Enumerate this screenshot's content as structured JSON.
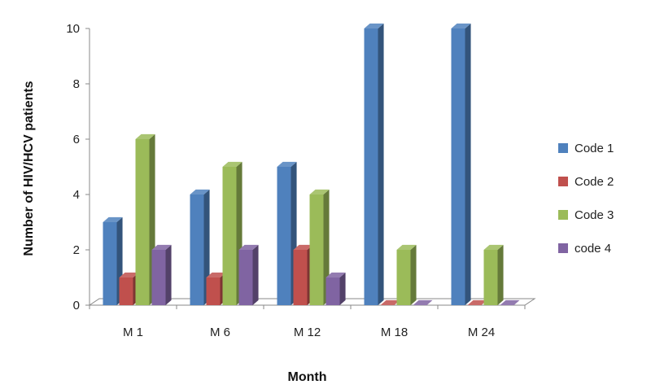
{
  "chart_data": {
    "type": "bar",
    "title": "",
    "xlabel": "Month",
    "ylabel": "Number of HIV/HCV patients",
    "categories": [
      "M 1",
      "M 6",
      "M 12",
      "M 18",
      "M 24"
    ],
    "ylim": [
      0,
      10
    ],
    "yticks": [
      "0",
      "2",
      "4",
      "6",
      "8",
      "10"
    ],
    "grid": false,
    "legend_position": "right",
    "series": [
      {
        "name": "Code 1",
        "color": "#4F81BD",
        "values": [
          3,
          4,
          5,
          10,
          10
        ]
      },
      {
        "name": "Code 2",
        "color": "#C0504D",
        "values": [
          1,
          1,
          2,
          0,
          0
        ]
      },
      {
        "name": "Code 3",
        "color": "#9BBB59",
        "values": [
          6,
          5,
          4,
          2,
          2
        ]
      },
      {
        "name": "code 4",
        "color": "#8064A2",
        "values": [
          2,
          2,
          1,
          0,
          0
        ]
      }
    ]
  }
}
